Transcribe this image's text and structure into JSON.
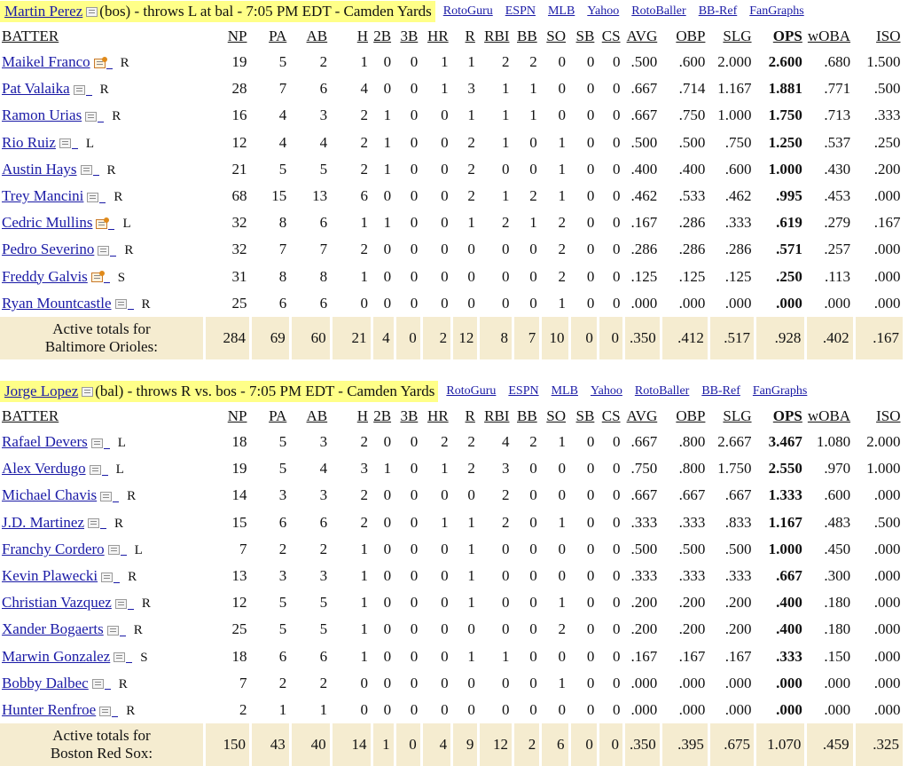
{
  "columns": [
    "BATTER",
    "NP",
    "PA",
    "AB",
    "H",
    "2B",
    "3B",
    "HR",
    "R",
    "RBI",
    "BB",
    "SO",
    "SB",
    "CS",
    "AVG",
    "OBP",
    "SLG",
    "OPS",
    "wOBA",
    "ISO"
  ],
  "links": [
    "RotoGuru",
    "ESPN",
    "MLB",
    "Yahoo",
    "RotoBaller",
    "BB-Ref",
    "FanGraphs"
  ],
  "games": [
    {
      "pitcher": "Martin Perez",
      "info": "(bos) - throws L at bal - 7:05 PM EDT - Camden Yards",
      "totals_label_1": "Active totals for",
      "totals_label_2": "Baltimore Orioles:",
      "totals": [
        "284",
        "69",
        "60",
        "21",
        "4",
        "0",
        "2",
        "12",
        "8",
        "7",
        "10",
        "0",
        "0",
        ".350",
        ".412",
        ".517",
        ".928",
        ".402",
        ".167"
      ],
      "batters": [
        {
          "name": "Maikel Franco",
          "hand": "R",
          "note": "hot",
          "stats": [
            "19",
            "5",
            "2",
            "1",
            "0",
            "0",
            "1",
            "1",
            "2",
            "2",
            "0",
            "0",
            "0",
            ".500",
            ".600",
            "2.000",
            "2.600",
            ".680",
            "1.500"
          ]
        },
        {
          "name": "Pat Valaika",
          "hand": "R",
          "note": "plain",
          "stats": [
            "28",
            "7",
            "6",
            "4",
            "0",
            "0",
            "1",
            "3",
            "1",
            "1",
            "0",
            "0",
            "0",
            ".667",
            ".714",
            "1.167",
            "1.881",
            ".771",
            ".500"
          ]
        },
        {
          "name": "Ramon Urias",
          "hand": "R",
          "note": "plain",
          "stats": [
            "16",
            "4",
            "3",
            "2",
            "1",
            "0",
            "0",
            "1",
            "1",
            "1",
            "0",
            "0",
            "0",
            ".667",
            ".750",
            "1.000",
            "1.750",
            ".713",
            ".333"
          ]
        },
        {
          "name": "Rio Ruiz",
          "hand": "L",
          "note": "plain",
          "stats": [
            "12",
            "4",
            "4",
            "2",
            "1",
            "0",
            "0",
            "2",
            "1",
            "0",
            "1",
            "0",
            "0",
            ".500",
            ".500",
            ".750",
            "1.250",
            ".537",
            ".250"
          ]
        },
        {
          "name": "Austin Hays",
          "hand": "R",
          "note": "plain",
          "stats": [
            "21",
            "5",
            "5",
            "2",
            "1",
            "0",
            "0",
            "2",
            "0",
            "0",
            "1",
            "0",
            "0",
            ".400",
            ".400",
            ".600",
            "1.000",
            ".430",
            ".200"
          ]
        },
        {
          "name": "Trey Mancini",
          "hand": "R",
          "note": "plain",
          "stats": [
            "68",
            "15",
            "13",
            "6",
            "0",
            "0",
            "0",
            "2",
            "1",
            "2",
            "1",
            "0",
            "0",
            ".462",
            ".533",
            ".462",
            ".995",
            ".453",
            ".000"
          ]
        },
        {
          "name": "Cedric Mullins",
          "hand": "L",
          "note": "hot",
          "stats": [
            "32",
            "8",
            "6",
            "1",
            "1",
            "0",
            "0",
            "1",
            "2",
            "1",
            "2",
            "0",
            "0",
            ".167",
            ".286",
            ".333",
            ".619",
            ".279",
            ".167"
          ]
        },
        {
          "name": "Pedro Severino",
          "hand": "R",
          "note": "plain",
          "stats": [
            "32",
            "7",
            "7",
            "2",
            "0",
            "0",
            "0",
            "0",
            "0",
            "0",
            "2",
            "0",
            "0",
            ".286",
            ".286",
            ".286",
            ".571",
            ".257",
            ".000"
          ]
        },
        {
          "name": "Freddy Galvis",
          "hand": "S",
          "note": "hot",
          "stats": [
            "31",
            "8",
            "8",
            "1",
            "0",
            "0",
            "0",
            "0",
            "0",
            "0",
            "2",
            "0",
            "0",
            ".125",
            ".125",
            ".125",
            ".250",
            ".113",
            ".000"
          ]
        },
        {
          "name": "Ryan Mountcastle",
          "hand": "R",
          "note": "plain",
          "stats": [
            "25",
            "6",
            "6",
            "0",
            "0",
            "0",
            "0",
            "0",
            "0",
            "0",
            "1",
            "0",
            "0",
            ".000",
            ".000",
            ".000",
            ".000",
            ".000",
            ".000"
          ]
        }
      ]
    },
    {
      "pitcher": "Jorge Lopez",
      "info": "(bal) - throws R vs. bos - 7:05 PM EDT - Camden Yards",
      "totals_label_1": "Active totals for",
      "totals_label_2": "Boston Red Sox:",
      "totals": [
        "150",
        "43",
        "40",
        "14",
        "1",
        "0",
        "4",
        "9",
        "12",
        "2",
        "6",
        "0",
        "0",
        ".350",
        ".395",
        ".675",
        "1.070",
        ".459",
        ".325"
      ],
      "batters": [
        {
          "name": "Rafael Devers",
          "hand": "L",
          "note": "plain",
          "stats": [
            "18",
            "5",
            "3",
            "2",
            "0",
            "0",
            "2",
            "2",
            "4",
            "2",
            "1",
            "0",
            "0",
            ".667",
            ".800",
            "2.667",
            "3.467",
            "1.080",
            "2.000"
          ]
        },
        {
          "name": "Alex Verdugo",
          "hand": "L",
          "note": "plain",
          "stats": [
            "19",
            "5",
            "4",
            "3",
            "1",
            "0",
            "1",
            "2",
            "3",
            "0",
            "0",
            "0",
            "0",
            ".750",
            ".800",
            "1.750",
            "2.550",
            ".970",
            "1.000"
          ]
        },
        {
          "name": "Michael Chavis",
          "hand": "R",
          "note": "plain",
          "stats": [
            "14",
            "3",
            "3",
            "2",
            "0",
            "0",
            "0",
            "0",
            "2",
            "0",
            "0",
            "0",
            "0",
            ".667",
            ".667",
            ".667",
            "1.333",
            ".600",
            ".000"
          ]
        },
        {
          "name": "J.D. Martinez",
          "hand": "R",
          "note": "plain",
          "stats": [
            "15",
            "6",
            "6",
            "2",
            "0",
            "0",
            "1",
            "1",
            "2",
            "0",
            "1",
            "0",
            "0",
            ".333",
            ".333",
            ".833",
            "1.167",
            ".483",
            ".500"
          ]
        },
        {
          "name": "Franchy Cordero",
          "hand": "L",
          "note": "plain",
          "stats": [
            "7",
            "2",
            "2",
            "1",
            "0",
            "0",
            "0",
            "1",
            "0",
            "0",
            "0",
            "0",
            "0",
            ".500",
            ".500",
            ".500",
            "1.000",
            ".450",
            ".000"
          ]
        },
        {
          "name": "Kevin Plawecki",
          "hand": "R",
          "note": "plain",
          "stats": [
            "13",
            "3",
            "3",
            "1",
            "0",
            "0",
            "0",
            "1",
            "0",
            "0",
            "0",
            "0",
            "0",
            ".333",
            ".333",
            ".333",
            ".667",
            ".300",
            ".000"
          ]
        },
        {
          "name": "Christian Vazquez",
          "hand": "R",
          "note": "plain",
          "stats": [
            "12",
            "5",
            "5",
            "1",
            "0",
            "0",
            "0",
            "1",
            "0",
            "0",
            "1",
            "0",
            "0",
            ".200",
            ".200",
            ".200",
            ".400",
            ".180",
            ".000"
          ]
        },
        {
          "name": "Xander Bogaerts",
          "hand": "R",
          "note": "plain",
          "stats": [
            "25",
            "5",
            "5",
            "1",
            "0",
            "0",
            "0",
            "0",
            "0",
            "0",
            "2",
            "0",
            "0",
            ".200",
            ".200",
            ".200",
            ".400",
            ".180",
            ".000"
          ]
        },
        {
          "name": "Marwin Gonzalez",
          "hand": "S",
          "note": "plain",
          "stats": [
            "18",
            "6",
            "6",
            "1",
            "0",
            "0",
            "0",
            "1",
            "1",
            "0",
            "0",
            "0",
            "0",
            ".167",
            ".167",
            ".167",
            ".333",
            ".150",
            ".000"
          ]
        },
        {
          "name": "Bobby Dalbec",
          "hand": "R",
          "note": "plain",
          "stats": [
            "7",
            "2",
            "2",
            "0",
            "0",
            "0",
            "0",
            "0",
            "0",
            "0",
            "1",
            "0",
            "0",
            ".000",
            ".000",
            ".000",
            ".000",
            ".000",
            ".000"
          ]
        },
        {
          "name": "Hunter Renfroe",
          "hand": "R",
          "note": "plain",
          "stats": [
            "2",
            "1",
            "1",
            "0",
            "0",
            "0",
            "0",
            "0",
            "0",
            "0",
            "0",
            "0",
            "0",
            ".000",
            ".000",
            ".000",
            ".000",
            ".000",
            ".000"
          ]
        }
      ]
    }
  ]
}
